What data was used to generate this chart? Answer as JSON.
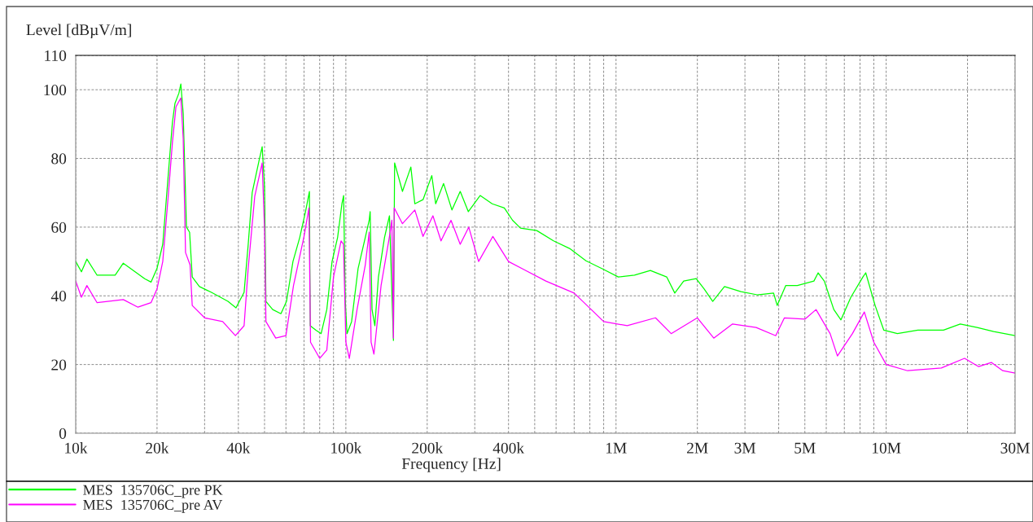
{
  "chart_data": {
    "type": "line",
    "xlabel": "Frequency [Hz]",
    "ylabel": "Level [dBµV/m]",
    "log": "x",
    "xlim": [
      10000,
      30000000
    ],
    "ylim": [
      0,
      110
    ],
    "xticks": [
      {
        "value": 10000,
        "label": "10k"
      },
      {
        "value": 20000,
        "label": "20k"
      },
      {
        "value": 30000,
        "label": null
      },
      {
        "value": 40000,
        "label": "40k"
      },
      {
        "value": 50000,
        "label": null
      },
      {
        "value": 60000,
        "label": null
      },
      {
        "value": 70000,
        "label": null
      },
      {
        "value": 80000,
        "label": null
      },
      {
        "value": 90000,
        "label": null
      },
      {
        "value": 100000,
        "label": "100k"
      },
      {
        "value": 200000,
        "label": "200k"
      },
      {
        "value": 300000,
        "label": null
      },
      {
        "value": 400000,
        "label": "400k"
      },
      {
        "value": 500000,
        "label": null
      },
      {
        "value": 600000,
        "label": null
      },
      {
        "value": 700000,
        "label": null
      },
      {
        "value": 800000,
        "label": null
      },
      {
        "value": 900000,
        "label": null
      },
      {
        "value": 1000000,
        "label": "1M"
      },
      {
        "value": 2000000,
        "label": "2M"
      },
      {
        "value": 3000000,
        "label": "3M"
      },
      {
        "value": 4000000,
        "label": null
      },
      {
        "value": 5000000,
        "label": "5M"
      },
      {
        "value": 6000000,
        "label": null
      },
      {
        "value": 7000000,
        "label": null
      },
      {
        "value": 8000000,
        "label": null
      },
      {
        "value": 9000000,
        "label": null
      },
      {
        "value": 10000000,
        "label": "10M"
      },
      {
        "value": 20000000,
        "label": null
      },
      {
        "value": 30000000,
        "label": "30M"
      }
    ],
    "yticks": [
      0,
      20,
      40,
      60,
      80,
      100,
      110
    ],
    "grid": true,
    "legend": "bottom",
    "line_style": "solid",
    "marker": "none",
    "series": [
      {
        "name": "MES  135706C_pre PK",
        "color": "#00ff00",
        "x": [
          10000,
          10500,
          11000,
          12000,
          14000,
          15000,
          18000,
          19000,
          20000,
          21000,
          22200,
          22800,
          23300,
          24100,
          24500,
          25000,
          25700,
          26400,
          27000,
          28700,
          31800,
          36600,
          39200,
          42000,
          43500,
          45000,
          47600,
          49000,
          50000,
          50600,
          53600,
          57500,
          60300,
          63700,
          67500,
          70900,
          73300,
          73800,
          77500,
          81000,
          85000,
          88900,
          93200,
          96700,
          98100,
          99500,
          101000,
          105000,
          111000,
          118000,
          122000,
          123000,
          125000,
          128000,
          132000,
          139000,
          145000,
          150000,
          151500,
          162000,
          174000,
          180000,
          193000,
          208000,
          215000,
          230000,
          247000,
          265000,
          284000,
          314000,
          348000,
          386000,
          414000,
          443000,
          509000,
          587000,
          673000,
          774000,
          889000,
          1020000,
          1170000,
          1340000,
          1540000,
          1650000,
          1780000,
          1980000,
          2120000,
          2280000,
          2520000,
          2900000,
          3330000,
          3830000,
          3950000,
          4250000,
          4690000,
          5400000,
          5600000,
          5900000,
          6400000,
          6800000,
          7400000,
          8200000,
          8400000,
          9100000,
          9800000,
          11000000,
          13100000,
          16300000,
          18800000,
          21700000,
          25000000,
          30000000
        ],
        "values": [
          50,
          47,
          50.7,
          46,
          46,
          49.5,
          45,
          44,
          48,
          55,
          79,
          90.5,
          96,
          99,
          101.7,
          93,
          60,
          58.5,
          45.5,
          42.7,
          41,
          38.4,
          36.5,
          41,
          55,
          70,
          79,
          83.4,
          71.6,
          38.4,
          36,
          34.8,
          38.4,
          50,
          57,
          64.5,
          70.4,
          31.3,
          30,
          29,
          36,
          50,
          57,
          66.8,
          69.2,
          38.4,
          29,
          32.5,
          48,
          57,
          62,
          64.5,
          36,
          31.3,
          45.5,
          57,
          63.3,
          27,
          78.7,
          70.4,
          77.5,
          66.8,
          68,
          75,
          66.8,
          72.7,
          65,
          70.4,
          64.5,
          69.2,
          66.8,
          65.6,
          62,
          59.7,
          59,
          56,
          53.8,
          50.2,
          47.9,
          45.5,
          46,
          47.4,
          45.5,
          40.8,
          44.3,
          45,
          42,
          38.4,
          42.7,
          41.2,
          40.3,
          40.8,
          37.2,
          43,
          43,
          44.3,
          46.7,
          44.3,
          36,
          33,
          39.6,
          45.5,
          46.7,
          37.2,
          30,
          29,
          30,
          30,
          31.8,
          30.8,
          29.6,
          28.4
        ]
      },
      {
        "name": "MES  135706C_pre AV",
        "color": "#ff00ff",
        "x": [
          10000,
          10500,
          11000,
          12000,
          15000,
          17000,
          19000,
          20000,
          21000,
          22000,
          22800,
          23500,
          24500,
          25000,
          25500,
          26500,
          27000,
          30000,
          35000,
          39000,
          42000,
          43500,
          46000,
          49000,
          50000,
          50600,
          55000,
          60000,
          64000,
          70000,
          73000,
          74000,
          80000,
          85000,
          90000,
          96000,
          98000,
          100000,
          103000,
          110000,
          118000,
          122000,
          124000,
          127000,
          135000,
          145000,
          148000,
          150000,
          151000,
          162000,
          180000,
          193000,
          210000,
          225000,
          245000,
          265000,
          285000,
          310000,
          350000,
          400000,
          450000,
          550000,
          700000,
          900000,
          1100000,
          1400000,
          1600000,
          2000000,
          2300000,
          2700000,
          3300000,
          3900000,
          4200000,
          5000000,
          5500000,
          6200000,
          6600000,
          7500000,
          8300000,
          9000000,
          10000000,
          12000000,
          16000000,
          19500000,
          22000000,
          24500000,
          27000000,
          30000000
        ],
        "values": [
          44.3,
          39.6,
          43,
          38,
          38.9,
          36.7,
          38,
          42,
          50,
          69,
          84.6,
          95,
          97.6,
          85.8,
          52.6,
          49,
          37.2,
          33.6,
          32.5,
          28.4,
          31.3,
          48,
          69,
          78.7,
          59.7,
          32.5,
          27.7,
          28.4,
          43,
          57.3,
          65.6,
          26.5,
          21.8,
          24.2,
          45.5,
          56,
          55,
          26.5,
          21.8,
          36,
          49,
          58.5,
          26.5,
          23,
          43,
          57.3,
          62,
          27.7,
          65.6,
          61,
          65,
          57.3,
          63.3,
          56,
          62,
          55,
          60,
          50,
          57.3,
          50,
          47.9,
          44.3,
          40.8,
          32.5,
          31.3,
          33.6,
          29,
          33.6,
          27.7,
          31.8,
          30.8,
          28.4,
          33.6,
          33.2,
          36,
          29,
          22.5,
          29,
          35.3,
          26.5,
          20,
          18.2,
          19,
          21.8,
          19.4,
          20.6,
          18.2,
          17.5
        ]
      }
    ]
  }
}
